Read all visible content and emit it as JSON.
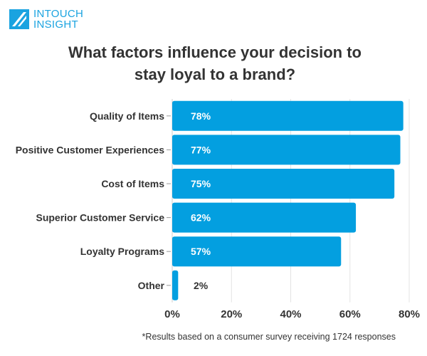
{
  "logo": {
    "line1": "INTOUCH",
    "line2": "INSIGHT"
  },
  "chart_data": {
    "type": "bar",
    "orientation": "horizontal",
    "title": "What factors influence your decision to stay loyal to a brand?",
    "title_lines": [
      "What factors influence your decision to",
      "stay loyal to a brand?"
    ],
    "categories": [
      "Quality of Items",
      "Positive Customer Experiences",
      "Cost of Items",
      "Superior Customer Service",
      "Loyalty Programs",
      "Other"
    ],
    "values": [
      78,
      77,
      75,
      62,
      57,
      2
    ],
    "value_labels": [
      "78%",
      "77%",
      "75%",
      "62%",
      "57%",
      "2%"
    ],
    "xlim": [
      0,
      80
    ],
    "xticks": [
      0,
      20,
      40,
      60,
      80
    ],
    "xtick_labels": [
      "0%",
      "20%",
      "40%",
      "60%",
      "80%"
    ],
    "grid": true,
    "bar_color": "#039fe0",
    "footnote": "*Results based on a consumer survey receiving 1724 responses"
  }
}
